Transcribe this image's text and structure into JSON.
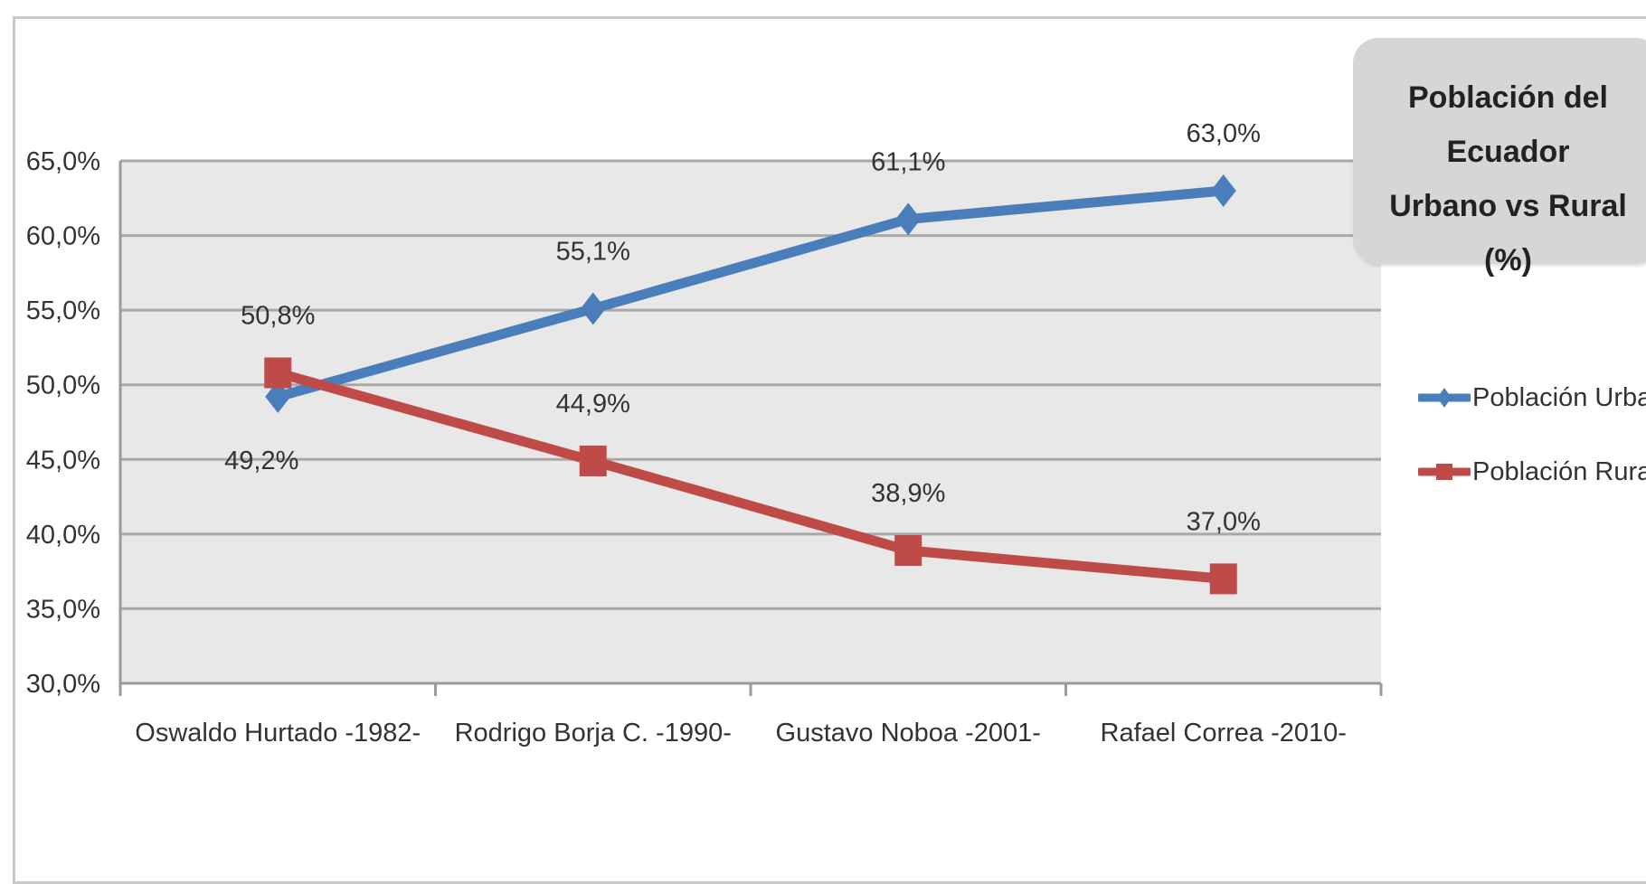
{
  "chart_data": {
    "type": "line",
    "title": [
      "Población del Ecuador",
      "Urbano vs Rural",
      "(%)"
    ],
    "categories": [
      "Oswaldo Hurtado -1982-",
      "Rodrigo Borja C. -1990-",
      "Gustavo Noboa -2001-",
      "Rafael Correa -2010-"
    ],
    "y_ticks": [
      "30,0%",
      "35,0%",
      "40,0%",
      "45,0%",
      "50,0%",
      "55,0%",
      "60,0%",
      "65,0%"
    ],
    "ylim": [
      30,
      65
    ],
    "grid": true,
    "legend_position": "right",
    "series": [
      {
        "name": "Población Urbana",
        "values": [
          49.2,
          55.1,
          61.1,
          63.0
        ],
        "labels": [
          "49,2%",
          "55,1%",
          "61,1%",
          "63,0%"
        ],
        "color": "#4a7ebb",
        "marker": "diamond"
      },
      {
        "name": "Población Rural",
        "values": [
          50.8,
          44.9,
          38.9,
          37.0
        ],
        "labels": [
          "50,8%",
          "44,9%",
          "38,9%",
          "37,0%"
        ],
        "color": "#be4b48",
        "marker": "square"
      }
    ]
  }
}
